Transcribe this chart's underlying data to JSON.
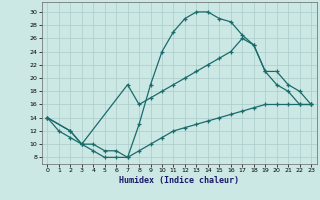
{
  "xlabel": "Humidex (Indice chaleur)",
  "bg_color": "#cce8e5",
  "line_color": "#1a6b6b",
  "grid_color": "#aaccca",
  "xlim": [
    -0.5,
    23.5
  ],
  "ylim": [
    7,
    31.5
  ],
  "xticks": [
    0,
    1,
    2,
    3,
    4,
    5,
    6,
    7,
    8,
    9,
    10,
    11,
    12,
    13,
    14,
    15,
    16,
    17,
    18,
    19,
    20,
    21,
    22,
    23
  ],
  "yticks": [
    8,
    10,
    12,
    14,
    16,
    18,
    20,
    22,
    24,
    26,
    28,
    30
  ],
  "line1_x": [
    0,
    1,
    2,
    3,
    4,
    5,
    6,
    7,
    8,
    9,
    10,
    11,
    12,
    13,
    14,
    15,
    16,
    17,
    18,
    19,
    20,
    21,
    22,
    23
  ],
  "line1_y": [
    14,
    12,
    11,
    10,
    9,
    8,
    8,
    8,
    13,
    19,
    24,
    27,
    29,
    30,
    30,
    29,
    28.5,
    26.5,
    25,
    21,
    19,
    18,
    16,
    16
  ],
  "line2_x": [
    0,
    2,
    3,
    7,
    8,
    9,
    10,
    11,
    12,
    13,
    14,
    15,
    16,
    17,
    18,
    19,
    20,
    21,
    22,
    23
  ],
  "line2_y": [
    14,
    12,
    10,
    19,
    16,
    17,
    18,
    19,
    20,
    21,
    22,
    23,
    24,
    26,
    25,
    21,
    21,
    19,
    18,
    16
  ],
  "line3_x": [
    0,
    2,
    3,
    4,
    5,
    6,
    7,
    8,
    9,
    10,
    11,
    12,
    13,
    14,
    15,
    16,
    17,
    18,
    19,
    20,
    21,
    22,
    23
  ],
  "line3_y": [
    14,
    12,
    10,
    10,
    9,
    9,
    8,
    9,
    10,
    11,
    12,
    12.5,
    13,
    13.5,
    14,
    14.5,
    15,
    15.5,
    16,
    16,
    16,
    16,
    16
  ]
}
